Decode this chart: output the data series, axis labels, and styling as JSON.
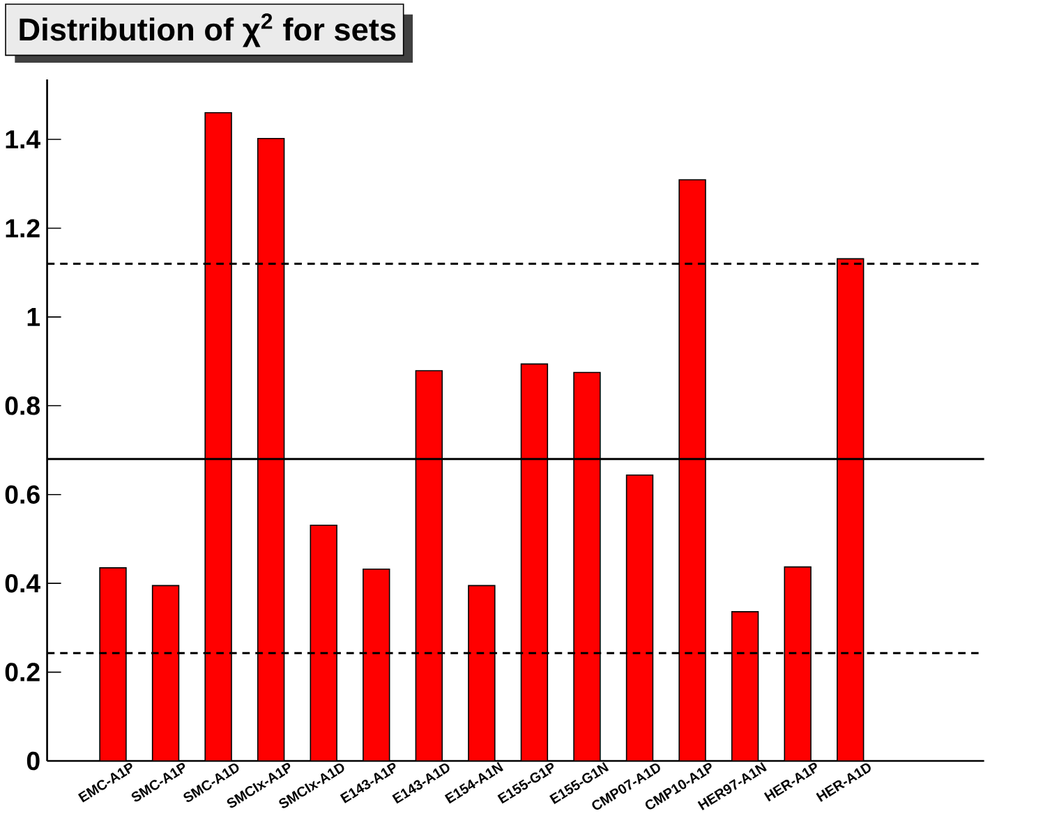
{
  "chart_data": {
    "type": "bar",
    "title": "Distribution of χ$^{2}$ for sets",
    "categories": [
      "EMC-A1P",
      "SMC-A1P",
      "SMC-A1D",
      "SMCIx-A1P",
      "SMCIx-A1D",
      "E143-A1P",
      "E143-A1D",
      "E154-A1N",
      "E155-G1P",
      "E155-G1N",
      "CMP07-A1D",
      "CMP10-A1P",
      "HER97-A1N",
      "HER-A1P",
      "HER-A1D"
    ],
    "values": [
      0.435,
      0.395,
      1.46,
      1.402,
      0.531,
      0.432,
      0.879,
      0.395,
      0.894,
      0.875,
      0.644,
      1.309,
      0.336,
      0.437,
      1.131
    ],
    "color": "#ff0000",
    "ylim": [
      0,
      1.535
    ],
    "yticks": [
      0,
      0.2,
      0.4,
      0.6,
      0.8,
      1,
      1.2,
      1.4
    ],
    "ref_lines": [
      {
        "axis": "y",
        "value": 1.12,
        "line_style": "dashed"
      },
      {
        "axis": "y",
        "value": 0.68,
        "line_style": "solid"
      },
      {
        "axis": "y",
        "value": 0.243,
        "line_style": "dashed"
      }
    ],
    "grid": false
  }
}
